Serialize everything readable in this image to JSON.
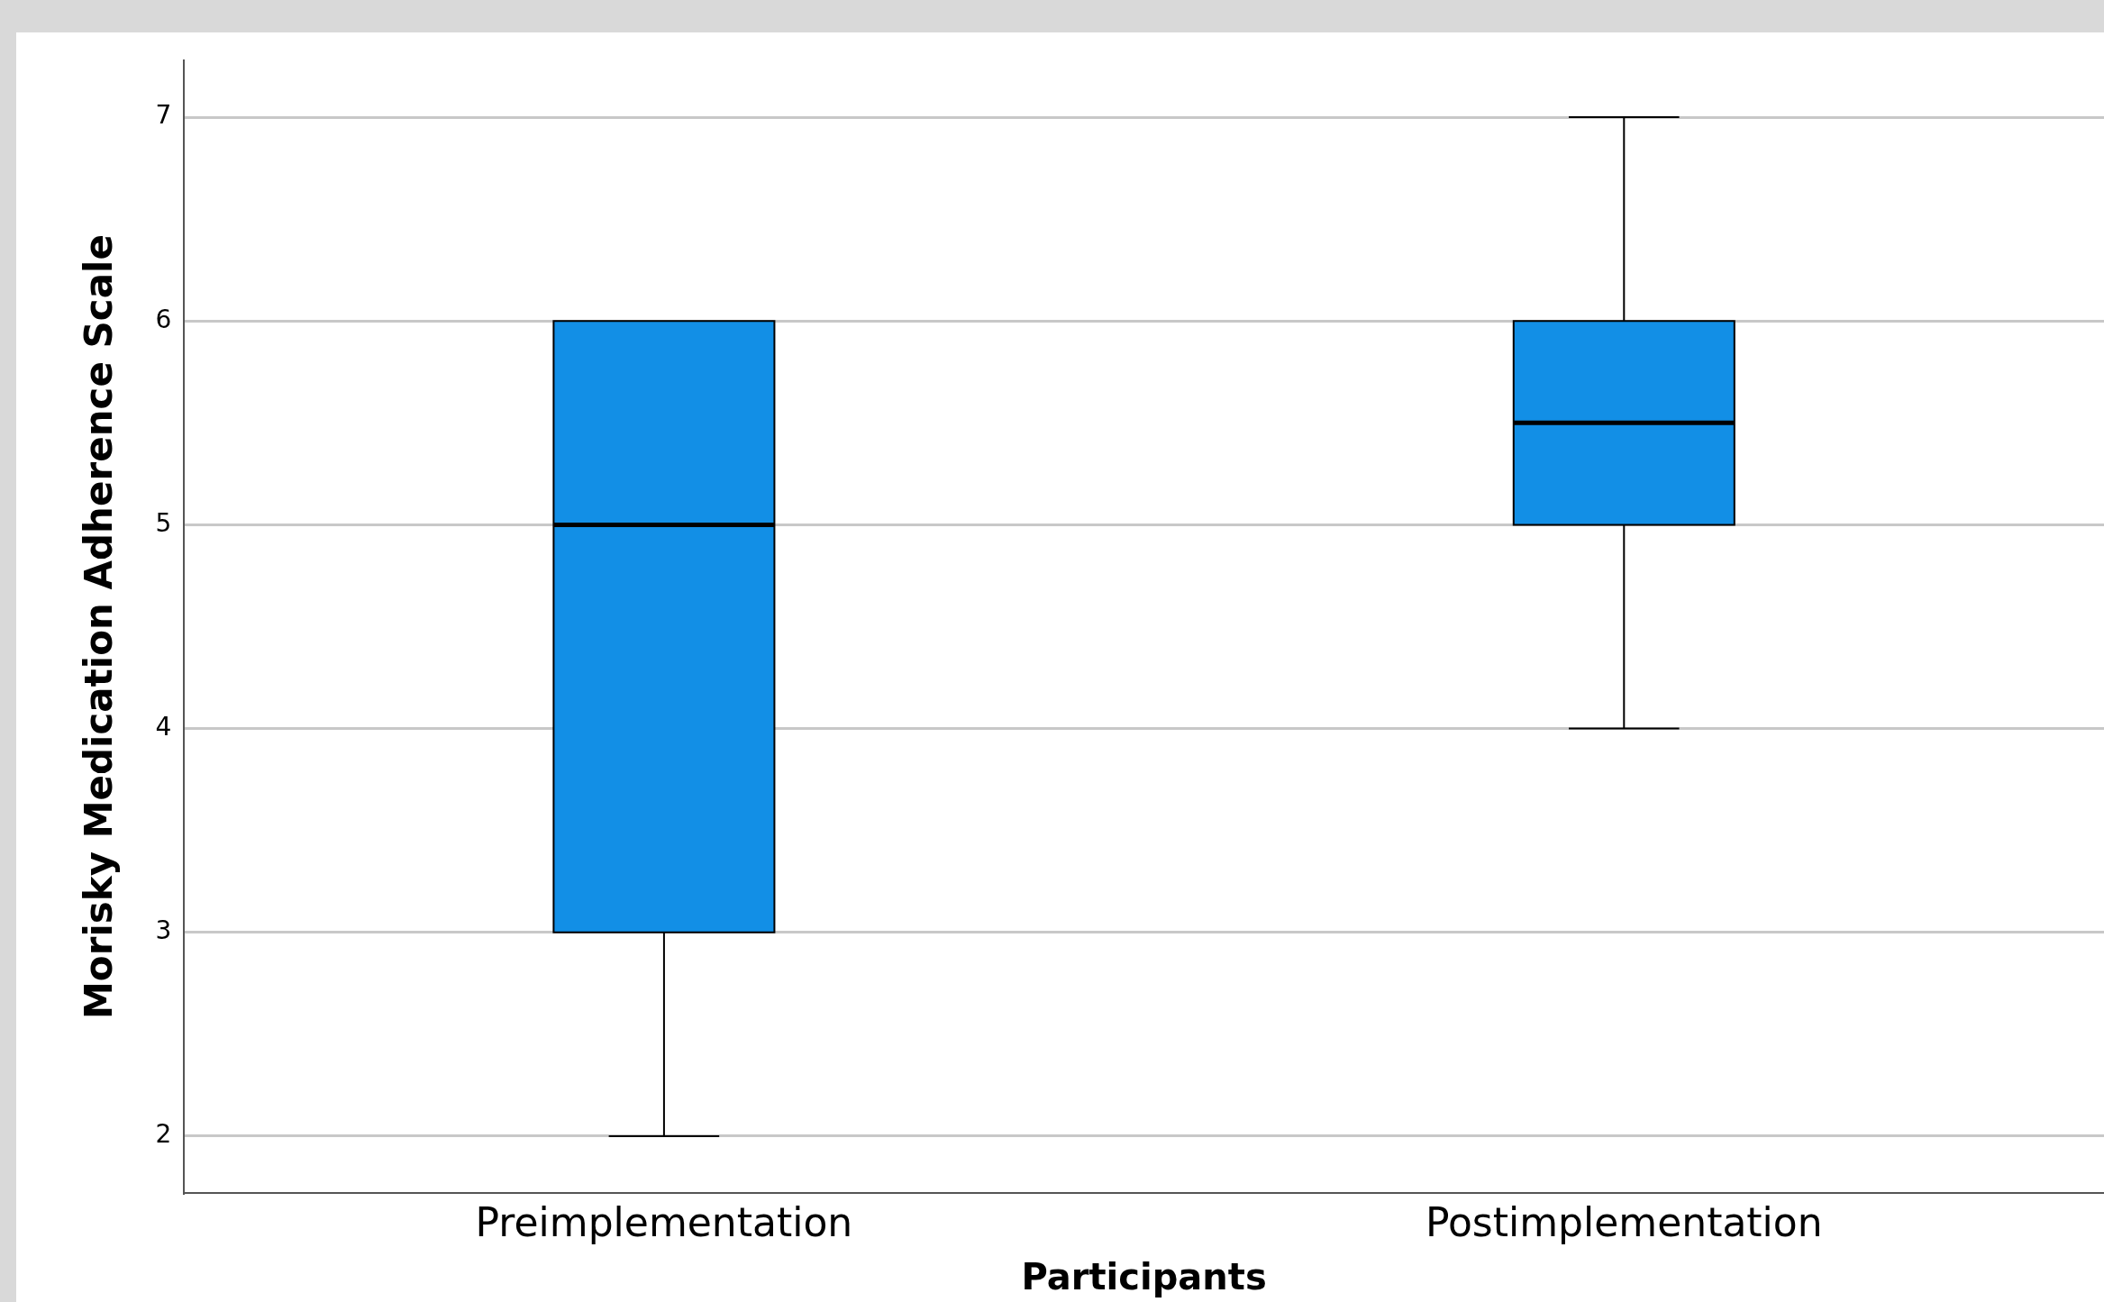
{
  "chart_data": {
    "type": "box",
    "xlabel": "Participants",
    "ylabel": "Morisky Medication Adherence Scale",
    "categories": [
      "Preimplementation",
      "Postimplementation"
    ],
    "boxes": [
      {
        "low": 2,
        "q1": 3,
        "median": 5,
        "q3": 6,
        "high": 6
      },
      {
        "low": 4,
        "q1": 5,
        "median": 5.5,
        "q3": 6,
        "high": 7
      }
    ],
    "color": "#128fe6",
    "ylim": [
      1.72,
      7.28
    ],
    "yticks": [
      2,
      3,
      4,
      5,
      6,
      7
    ],
    "grid": "y",
    "legend": false
  }
}
